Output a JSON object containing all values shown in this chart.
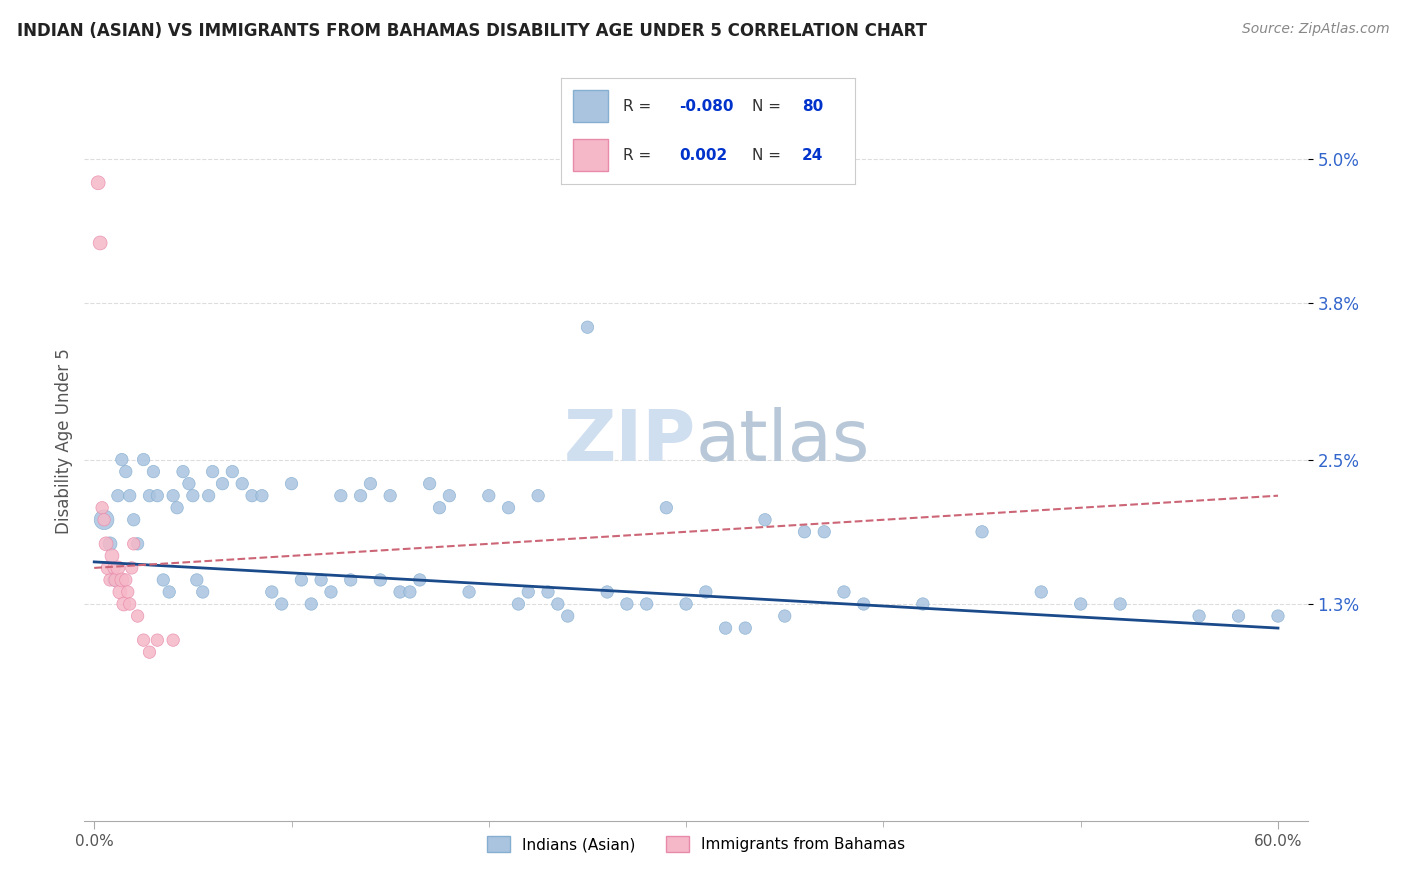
{
  "title": "INDIAN (ASIAN) VS IMMIGRANTS FROM BAHAMAS DISABILITY AGE UNDER 5 CORRELATION CHART",
  "source": "Source: ZipAtlas.com",
  "ylabel": "Disability Age Under 5",
  "xlim": [
    -0.005,
    0.615
  ],
  "ylim": [
    -0.005,
    0.058
  ],
  "yticks": [
    0.013,
    0.025,
    0.038,
    0.05
  ],
  "ytick_labels": [
    "1.3%",
    "2.5%",
    "3.8%",
    "5.0%"
  ],
  "xticks": [
    0.0,
    0.6
  ],
  "xtick_labels": [
    "0.0%",
    "60.0%"
  ],
  "xminorticks": [
    0.1,
    0.2,
    0.3,
    0.4,
    0.5
  ],
  "blue_color": "#aac4e0",
  "blue_edge": "#85aed0",
  "pink_color": "#f5b8c8",
  "pink_edge": "#e88aaa",
  "trend_blue_color": "#1a4a8a",
  "trend_pink_color": "#cc6677",
  "watermark_color": "#d0dff0",
  "title_color": "#222222",
  "legend_box_color": "#f0f0f0",
  "axis_color": "#aaaaaa",
  "grid_color": "#dddddd",
  "blue_x": [
    0.005,
    0.008,
    0.01,
    0.012,
    0.014,
    0.016,
    0.018,
    0.02,
    0.022,
    0.025,
    0.028,
    0.03,
    0.032,
    0.035,
    0.038,
    0.04,
    0.042,
    0.045,
    0.048,
    0.05,
    0.052,
    0.055,
    0.058,
    0.06,
    0.065,
    0.07,
    0.075,
    0.08,
    0.085,
    0.09,
    0.095,
    0.1,
    0.105,
    0.11,
    0.115,
    0.12,
    0.125,
    0.13,
    0.135,
    0.14,
    0.145,
    0.15,
    0.155,
    0.16,
    0.165,
    0.17,
    0.175,
    0.18,
    0.19,
    0.2,
    0.21,
    0.215,
    0.22,
    0.225,
    0.23,
    0.235,
    0.24,
    0.25,
    0.26,
    0.27,
    0.28,
    0.29,
    0.3,
    0.31,
    0.32,
    0.33,
    0.34,
    0.35,
    0.36,
    0.37,
    0.38,
    0.39,
    0.42,
    0.45,
    0.48,
    0.5,
    0.52,
    0.56,
    0.58,
    0.6
  ],
  "blue_y": [
    0.02,
    0.018,
    0.015,
    0.022,
    0.025,
    0.024,
    0.022,
    0.02,
    0.018,
    0.025,
    0.022,
    0.024,
    0.022,
    0.015,
    0.014,
    0.022,
    0.021,
    0.024,
    0.023,
    0.022,
    0.015,
    0.014,
    0.022,
    0.024,
    0.023,
    0.024,
    0.023,
    0.022,
    0.022,
    0.014,
    0.013,
    0.023,
    0.015,
    0.013,
    0.015,
    0.014,
    0.022,
    0.015,
    0.022,
    0.023,
    0.015,
    0.022,
    0.014,
    0.014,
    0.015,
    0.023,
    0.021,
    0.022,
    0.014,
    0.022,
    0.021,
    0.013,
    0.014,
    0.022,
    0.014,
    0.013,
    0.012,
    0.036,
    0.014,
    0.013,
    0.013,
    0.021,
    0.013,
    0.014,
    0.011,
    0.011,
    0.02,
    0.012,
    0.019,
    0.019,
    0.014,
    0.013,
    0.013,
    0.019,
    0.014,
    0.013,
    0.013,
    0.012,
    0.012,
    0.012
  ],
  "blue_sizes": [
    200,
    100,
    80,
    80,
    80,
    80,
    80,
    80,
    80,
    80,
    80,
    80,
    80,
    80,
    80,
    80,
    80,
    80,
    80,
    80,
    80,
    80,
    80,
    80,
    80,
    80,
    80,
    80,
    80,
    80,
    80,
    80,
    80,
    80,
    80,
    80,
    80,
    80,
    80,
    80,
    80,
    80,
    80,
    80,
    80,
    80,
    80,
    80,
    80,
    80,
    80,
    80,
    80,
    80,
    80,
    80,
    80,
    80,
    80,
    80,
    80,
    80,
    80,
    80,
    80,
    80,
    80,
    80,
    80,
    80,
    80,
    80,
    80,
    80,
    80,
    80,
    80,
    80,
    80,
    80
  ],
  "pink_x": [
    0.002,
    0.003,
    0.004,
    0.005,
    0.006,
    0.007,
    0.008,
    0.009,
    0.01,
    0.011,
    0.012,
    0.013,
    0.014,
    0.015,
    0.016,
    0.017,
    0.018,
    0.019,
    0.02,
    0.022,
    0.025,
    0.028,
    0.032,
    0.04
  ],
  "pink_y": [
    0.048,
    0.043,
    0.021,
    0.02,
    0.018,
    0.016,
    0.015,
    0.017,
    0.016,
    0.015,
    0.016,
    0.014,
    0.015,
    0.013,
    0.015,
    0.014,
    0.013,
    0.016,
    0.018,
    0.012,
    0.01,
    0.009,
    0.01,
    0.01
  ],
  "pink_sizes": [
    100,
    100,
    80,
    80,
    100,
    100,
    80,
    100,
    80,
    100,
    100,
    100,
    100,
    100,
    80,
    80,
    80,
    80,
    80,
    80,
    80,
    80,
    80,
    80
  ],
  "blue_trend": [
    0.0,
    0.6,
    0.0165,
    0.011
  ],
  "pink_trend": [
    0.0,
    0.6,
    0.016,
    0.022
  ]
}
